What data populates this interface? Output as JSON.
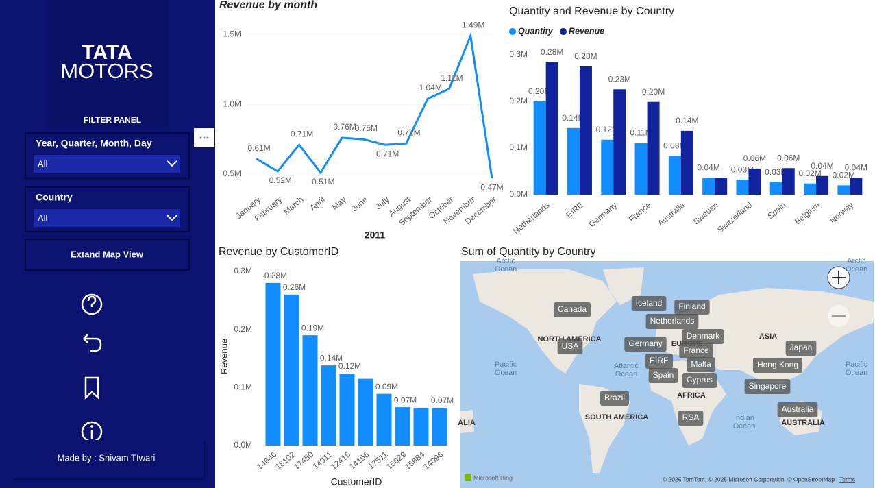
{
  "sidebar": {
    "logo": [
      "TATA",
      "MOTORS"
    ],
    "panel_title": "FILTER PANEL",
    "filters": [
      {
        "label": "Year, Quarter, Month, Day",
        "value": "All"
      },
      {
        "label": "Country",
        "value": "All"
      }
    ],
    "button": "Extand Map View",
    "credit": "Made by : Shivam TIwari"
  },
  "chart_data": [
    {
      "type": "line",
      "title": "Revenue by month",
      "x_label": "2011",
      "color": "#118dff",
      "categories": [
        "January",
        "February",
        "March",
        "April",
        "May",
        "June",
        "July",
        "August",
        "September",
        "October",
        "November",
        "December"
      ],
      "values": [
        610000,
        520000,
        710000,
        510000,
        760000,
        750000,
        710000,
        720000,
        1040000,
        1110000,
        1490000,
        470000
      ],
      "value_labels": [
        "0.61M",
        "0.52M",
        "0.71M",
        "0.51M",
        "0.76M",
        "0.75M",
        "0.71M",
        "0.72M",
        "1.04M",
        "1.11M",
        "1.49M",
        "0.47M"
      ],
      "ylim": [
        380000,
        1550000
      ],
      "yticks": [
        {
          "value": 500000,
          "label": "0.5M"
        },
        {
          "value": 1000000,
          "label": "1.0M"
        },
        {
          "value": 1500000,
          "label": "1.5M"
        }
      ],
      "grid": true
    },
    {
      "type": "grouped-bar",
      "title": "Quantity and Revenue by Country",
      "legend": "top-left",
      "categories": [
        "Netherlands",
        "EIRE",
        "Germany",
        "France",
        "Australia",
        "Sweden",
        "Switzerland",
        "Spain",
        "Belgium",
        "Norway"
      ],
      "series": [
        {
          "name": "Quantity",
          "color": "#118dff",
          "values": [
            200000,
            143000,
            118000,
            111000,
            83000,
            36000,
            32000,
            27000,
            24000,
            20000
          ],
          "value_labels": [
            "0.20M",
            "0.14M",
            "0.12M",
            "0.11M",
            "0.08M",
            "0.04M",
            "0.03M",
            "0.03M",
            "0.02M",
            "0.02M"
          ]
        },
        {
          "name": "Revenue",
          "color": "#12239e",
          "values": [
            284000,
            275000,
            226000,
            199000,
            137000,
            36000,
            56000,
            57000,
            40000,
            36000
          ],
          "value_labels": [
            "0.28M",
            "0.28M",
            "0.23M",
            "0.20M",
            "0.14M",
            null,
            "0.06M",
            "0.06M",
            "0.04M",
            "0.04M"
          ]
        }
      ],
      "ylim": [
        0,
        330000
      ],
      "yticks": [
        {
          "value": 0,
          "label": "0.0M"
        },
        {
          "value": 100000,
          "label": "0.1M"
        },
        {
          "value": 200000,
          "label": "0.2M"
        },
        {
          "value": 300000,
          "label": "0.3M"
        }
      ]
    },
    {
      "type": "bar",
      "title": "Revenue by CustomerID",
      "x_label": "CustomerID",
      "y_label": "Revenue",
      "color": "#118dff",
      "categories": [
        "14646",
        "18102",
        "17450",
        "14911",
        "12415",
        "14156",
        "17511",
        "16029",
        "16684",
        "14096"
      ],
      "values": [
        280000,
        260000,
        190000,
        138000,
        124000,
        115000,
        89000,
        66000,
        65000,
        65000
      ],
      "value_labels": [
        "0.28M",
        "0.26M",
        "0.19M",
        "0.14M",
        "0.12M",
        null,
        "0.09M",
        "0.07M",
        null,
        "0.07M"
      ],
      "ylim": [
        0,
        310000
      ],
      "yticks": [
        {
          "value": 0,
          "label": "0.0M"
        },
        {
          "value": 100000,
          "label": "0.1M"
        },
        {
          "value": 200000,
          "label": "0.2M"
        },
        {
          "value": 300000,
          "label": "0.3M"
        }
      ]
    },
    {
      "type": "map",
      "title": "Sum of Quantity by Country",
      "labels": [
        "Canada",
        "USA",
        "Iceland",
        "Finland",
        "Netherlands",
        "Germany",
        "Denmark",
        "France",
        "EIRE",
        "Malta",
        "Spain",
        "Cyprus",
        "Brazil",
        "RSA",
        "Japan",
        "Hong Kong",
        "Singapore",
        "Australia"
      ],
      "regions": [
        "NORTH AMERICA",
        "ASIA",
        "EUROPE",
        "AFRICA",
        "SOUTH AMERICA",
        "AUSTRALIA",
        "ALIA"
      ],
      "oceans": [
        [
          "Arctic",
          "Ocean"
        ],
        [
          "Arctic",
          "Ocean"
        ],
        [
          "Pacific",
          "Ocean"
        ],
        [
          "Atlantic",
          "Ocean"
        ],
        [
          "Pacific",
          "Ocean"
        ],
        [
          "Indian",
          "Ocean"
        ]
      ],
      "brand": "Microsoft Bing",
      "attribution": "© 2025 TomTom, © 2025 Microsoft Corporation, © OpenStreetMap",
      "terms": "Terms"
    }
  ]
}
